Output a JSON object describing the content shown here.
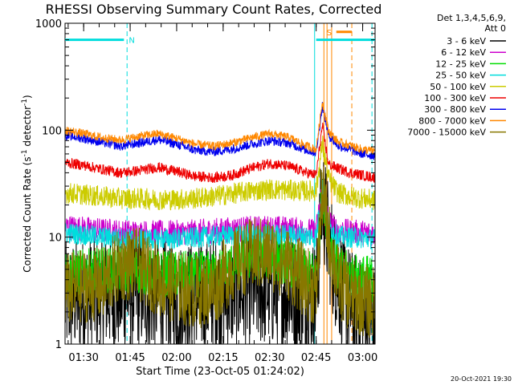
{
  "chart_data": {
    "type": "line",
    "title": "RHESSI Observing Summary Count Rates, Corrected",
    "xlabel": "Start Time (23-Oct-05 01:24:02)",
    "ylabel": "Corrected Count Rate (s⁻¹ detector⁻¹)",
    "ylabel_parts": {
      "base": "Corrected Count Rate (s",
      "sup1": "-1",
      "mid": " detector",
      "sup2": "-1",
      "end": ")"
    },
    "y_scale": "log",
    "ylim": [
      1,
      1000
    ],
    "xlim_minutes": [
      84,
      184
    ],
    "y_ticks": [
      {
        "value": 1,
        "label": "1"
      },
      {
        "value": 10,
        "label": "10"
      },
      {
        "value": 100,
        "label": "100"
      },
      {
        "value": 1000,
        "label": "1000"
      }
    ],
    "x_ticks": [
      {
        "value": 90,
        "label": "01:30"
      },
      {
        "value": 105,
        "label": "01:45"
      },
      {
        "value": 120,
        "label": "02:00"
      },
      {
        "value": 135,
        "label": "02:15"
      },
      {
        "value": 150,
        "label": "02:30"
      },
      {
        "value": 165,
        "label": "02:45"
      },
      {
        "value": 180,
        "label": "03:00"
      }
    ],
    "legend_placement": "outside-right",
    "legend_header": [
      "Det 1,3,4,5,6,9,",
      "Att 0"
    ],
    "footer_timestamp": "20-Oct-2021 19:30",
    "series": [
      {
        "name": "3 - 6 keV",
        "color": "#000000",
        "values": [
          [
            84,
            2.6
          ],
          [
            90,
            2.8
          ],
          [
            96,
            3.0
          ],
          [
            102,
            2.9
          ],
          [
            108,
            3.1
          ],
          [
            114,
            2.8
          ],
          [
            120,
            2.6
          ],
          [
            126,
            2.7
          ],
          [
            132,
            2.9
          ],
          [
            138,
            3.1
          ],
          [
            144,
            3.2
          ],
          [
            150,
            3.3
          ],
          [
            156,
            3.0
          ],
          [
            162,
            2.8
          ],
          [
            165,
            2.8
          ],
          [
            167,
            25
          ],
          [
            169,
            9
          ],
          [
            172,
            4
          ],
          [
            176,
            2.3
          ],
          [
            178,
            2.0
          ],
          [
            181,
            1.6
          ],
          [
            184,
            1.5
          ]
        ]
      },
      {
        "name": "6 - 12 keV",
        "color": "#cc00cc",
        "values": [
          [
            84,
            12.5
          ],
          [
            90,
            12.0
          ],
          [
            96,
            11.5
          ],
          [
            102,
            11.2
          ],
          [
            108,
            11.0
          ],
          [
            114,
            11.0
          ],
          [
            120,
            11.0
          ],
          [
            126,
            11.2
          ],
          [
            132,
            11.5
          ],
          [
            138,
            11.8
          ],
          [
            144,
            12.0
          ],
          [
            150,
            12.2
          ],
          [
            156,
            12.0
          ],
          [
            162,
            11.5
          ],
          [
            165,
            11.2
          ],
          [
            167,
            30
          ],
          [
            169,
            14
          ],
          [
            172,
            11.5
          ],
          [
            176,
            11.2
          ],
          [
            180,
            11.0
          ],
          [
            184,
            10.8
          ]
        ]
      },
      {
        "name": "12 - 25 keV",
        "color": "#00dd00",
        "values": [
          [
            84,
            4.6
          ],
          [
            90,
            4.7
          ],
          [
            96,
            4.9
          ],
          [
            102,
            5.0
          ],
          [
            108,
            4.8
          ],
          [
            114,
            4.6
          ],
          [
            120,
            4.5
          ],
          [
            126,
            4.5
          ],
          [
            132,
            4.6
          ],
          [
            138,
            5.5
          ],
          [
            144,
            6.5
          ],
          [
            150,
            6.6
          ],
          [
            156,
            5.8
          ],
          [
            162,
            4.6
          ],
          [
            165,
            4.5
          ],
          [
            167,
            28
          ],
          [
            169,
            11
          ],
          [
            172,
            5.0
          ],
          [
            176,
            4.4
          ],
          [
            180,
            4.2
          ],
          [
            184,
            4.0
          ]
        ]
      },
      {
        "name": "25 - 50 keV",
        "color": "#00dddd",
        "values": [
          [
            84,
            11.0
          ],
          [
            90,
            10.5
          ],
          [
            96,
            10.0
          ],
          [
            102,
            9.7
          ],
          [
            108,
            9.6
          ],
          [
            114,
            9.6
          ],
          [
            120,
            9.7
          ],
          [
            126,
            9.9
          ],
          [
            132,
            10.2
          ],
          [
            138,
            10.4
          ],
          [
            144,
            10.6
          ],
          [
            150,
            10.7
          ],
          [
            156,
            10.5
          ],
          [
            162,
            10.2
          ],
          [
            165,
            10.0
          ],
          [
            167,
            30
          ],
          [
            169,
            13
          ],
          [
            172,
            10.2
          ],
          [
            176,
            10.0
          ],
          [
            180,
            9.8
          ],
          [
            184,
            9.6
          ]
        ]
      },
      {
        "name": "50 - 100 keV",
        "color": "#cccc00",
        "values": [
          [
            84,
            26
          ],
          [
            90,
            25
          ],
          [
            96,
            24
          ],
          [
            102,
            23
          ],
          [
            108,
            23
          ],
          [
            114,
            22.5
          ],
          [
            120,
            22.5
          ],
          [
            126,
            23
          ],
          [
            132,
            24
          ],
          [
            138,
            25.5
          ],
          [
            144,
            27
          ],
          [
            150,
            28
          ],
          [
            156,
            27.5
          ],
          [
            162,
            27
          ],
          [
            165,
            27
          ],
          [
            167,
            75
          ],
          [
            169,
            35
          ],
          [
            172,
            26
          ],
          [
            176,
            24
          ],
          [
            180,
            23
          ],
          [
            184,
            22
          ]
        ]
      },
      {
        "name": "100 - 300 keV",
        "color": "#ee0000",
        "values": [
          [
            84,
            50
          ],
          [
            90,
            47
          ],
          [
            96,
            43
          ],
          [
            102,
            40
          ],
          [
            108,
            42
          ],
          [
            114,
            45
          ],
          [
            120,
            41
          ],
          [
            126,
            37
          ],
          [
            132,
            36
          ],
          [
            138,
            38
          ],
          [
            144,
            44
          ],
          [
            150,
            49
          ],
          [
            156,
            46
          ],
          [
            162,
            40
          ],
          [
            165,
            38
          ],
          [
            167,
            110
          ],
          [
            169,
            48
          ],
          [
            172,
            44
          ],
          [
            176,
            40
          ],
          [
            180,
            38
          ],
          [
            184,
            36
          ]
        ]
      },
      {
        "name": "300 - 800 keV",
        "color": "#0000ee",
        "values": [
          [
            84,
            90
          ],
          [
            90,
            84
          ],
          [
            96,
            77
          ],
          [
            102,
            71
          ],
          [
            108,
            76
          ],
          [
            114,
            82
          ],
          [
            120,
            74
          ],
          [
            126,
            65
          ],
          [
            132,
            63
          ],
          [
            138,
            67
          ],
          [
            144,
            74
          ],
          [
            150,
            80
          ],
          [
            156,
            76
          ],
          [
            162,
            65
          ],
          [
            165,
            62
          ],
          [
            167,
            170
          ],
          [
            169,
            90
          ],
          [
            172,
            72
          ],
          [
            176,
            66
          ],
          [
            180,
            60
          ],
          [
            184,
            58
          ]
        ]
      },
      {
        "name": "800 - 7000 keV",
        "color": "#ff8800",
        "values": [
          [
            84,
            100
          ],
          [
            90,
            93
          ],
          [
            96,
            85
          ],
          [
            102,
            81
          ],
          [
            108,
            88
          ],
          [
            114,
            93
          ],
          [
            120,
            84
          ],
          [
            126,
            74
          ],
          [
            132,
            71
          ],
          [
            138,
            76
          ],
          [
            144,
            85
          ],
          [
            150,
            93
          ],
          [
            156,
            86
          ],
          [
            162,
            71
          ],
          [
            165,
            66
          ],
          [
            167,
            185
          ],
          [
            169,
            98
          ],
          [
            172,
            78
          ],
          [
            176,
            72
          ],
          [
            180,
            66
          ],
          [
            184,
            64
          ]
        ]
      },
      {
        "name": "7000 - 15000 keV",
        "color": "#887700",
        "values": [
          [
            84,
            3.2
          ],
          [
            90,
            3.5
          ],
          [
            96,
            3.6
          ],
          [
            102,
            5.6
          ],
          [
            108,
            5.5
          ],
          [
            114,
            4.0
          ],
          [
            120,
            3.4
          ],
          [
            126,
            3.1
          ],
          [
            132,
            3.3
          ],
          [
            138,
            5.5
          ],
          [
            144,
            6.8
          ],
          [
            150,
            7.0
          ],
          [
            156,
            5.6
          ],
          [
            162,
            3.7
          ],
          [
            165,
            3.2
          ],
          [
            167,
            26
          ],
          [
            169,
            10
          ],
          [
            172,
            4
          ],
          [
            176,
            2.8
          ],
          [
            180,
            2.6
          ],
          [
            184,
            2.4
          ]
        ]
      }
    ],
    "annotations": {
      "segments": [
        {
          "label": "N",
          "color": "#00dddd",
          "start": 84,
          "end": 103,
          "y": 700
        },
        {
          "label": "",
          "color": "#00dddd",
          "start": 165,
          "end": 184,
          "y": 700
        },
        {
          "label": "S",
          "color": "#ff8800",
          "start": 171.5,
          "end": 176.5,
          "y": 830
        }
      ],
      "cyan_solid_lines": [
        164.5,
        184
      ],
      "cyan_dashed_lines": [
        104,
        183
      ],
      "orange_solid_lines": [
        167.5,
        168.5,
        170
      ],
      "orange_dashed_lines": [
        176.5
      ]
    }
  }
}
